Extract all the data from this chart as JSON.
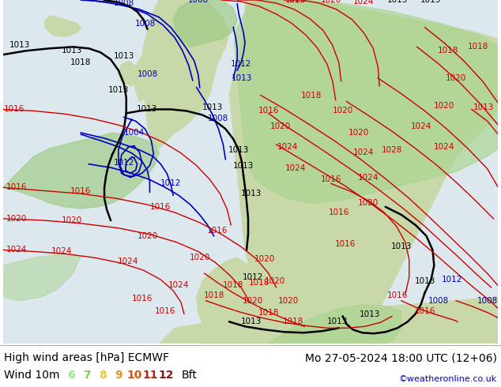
{
  "title_left": "High wind areas [hPa] ECMWF",
  "title_right": "Mo 27-05-2024 18:00 UTC (12+06)",
  "subtitle_label": "Wind 10m",
  "legend_numbers": [
    "6",
    "7",
    "8",
    "9",
    "10",
    "11",
    "12"
  ],
  "legend_colors": [
    "#90ee90",
    "#b8e070",
    "#f0c040",
    "#e08020",
    "#d04010",
    "#c02000",
    "#a00000"
  ],
  "legend_suffix": "Bft",
  "copyright": "©weatheronline.co.uk",
  "bg_color": "#ffffff",
  "sea_color": "#e8eef4",
  "land_color": "#c8d8a8",
  "wind_color": "#a8d898",
  "strong_wind_color": "#90c880",
  "title_color": "#000000",
  "copyright_color": "#0000cc",
  "title_fontsize": 10,
  "legend_fontsize": 10
}
